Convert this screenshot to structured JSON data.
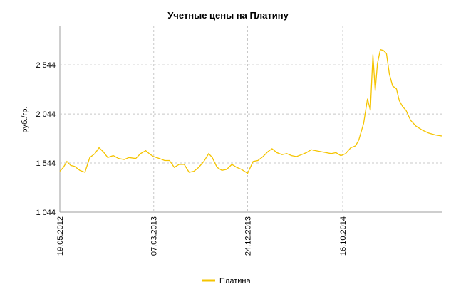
{
  "chart_data": {
    "type": "line",
    "title": "Учетные цены на Платину",
    "ylabel": "руб./гр.",
    "xlabel": "",
    "ylim": [
      1044,
      2944
    ],
    "y_ticks": [
      {
        "value": 1044,
        "label": "1 044"
      },
      {
        "value": 1544,
        "label": "1 544"
      },
      {
        "value": 2044,
        "label": "2 044"
      },
      {
        "value": 2544,
        "label": "2 544"
      }
    ],
    "x_ticks": [
      {
        "date": "2012-05-19",
        "label": "19.05.2012"
      },
      {
        "date": "2013-03-07",
        "label": "07.03.2013"
      },
      {
        "date": "2013-12-24",
        "label": "24.12.2013"
      },
      {
        "date": "2014-10-16",
        "label": "16.10.2014"
      }
    ],
    "xlim": [
      "2012-05-19",
      "2015-08-20"
    ],
    "grid": true,
    "legend": "bottom",
    "series": [
      {
        "name": "Платина",
        "color": "#f5c400",
        "points": [
          [
            "2012-05-19",
            1460
          ],
          [
            "2012-05-30",
            1500
          ],
          [
            "2012-06-10",
            1560
          ],
          [
            "2012-06-22",
            1520
          ],
          [
            "2012-07-04",
            1510
          ],
          [
            "2012-07-20",
            1470
          ],
          [
            "2012-08-05",
            1450
          ],
          [
            "2012-08-20",
            1600
          ],
          [
            "2012-09-05",
            1640
          ],
          [
            "2012-09-18",
            1700
          ],
          [
            "2012-10-01",
            1660
          ],
          [
            "2012-10-15",
            1600
          ],
          [
            "2012-11-01",
            1620
          ],
          [
            "2012-11-18",
            1590
          ],
          [
            "2012-12-05",
            1580
          ],
          [
            "2012-12-20",
            1600
          ],
          [
            "2013-01-10",
            1590
          ],
          [
            "2013-01-25",
            1640
          ],
          [
            "2013-02-10",
            1670
          ],
          [
            "2013-02-25",
            1630
          ],
          [
            "2013-03-07",
            1610
          ],
          [
            "2013-03-25",
            1590
          ],
          [
            "2013-04-10",
            1570
          ],
          [
            "2013-04-25",
            1570
          ],
          [
            "2013-05-10",
            1500
          ],
          [
            "2013-05-25",
            1530
          ],
          [
            "2013-06-10",
            1530
          ],
          [
            "2013-06-25",
            1450
          ],
          [
            "2013-07-10",
            1460
          ],
          [
            "2013-07-25",
            1500
          ],
          [
            "2013-08-10",
            1560
          ],
          [
            "2013-08-25",
            1640
          ],
          [
            "2013-09-05",
            1600
          ],
          [
            "2013-09-20",
            1500
          ],
          [
            "2013-10-05",
            1470
          ],
          [
            "2013-10-20",
            1480
          ],
          [
            "2013-11-05",
            1530
          ],
          [
            "2013-11-20",
            1500
          ],
          [
            "2013-12-05",
            1480
          ],
          [
            "2013-12-24",
            1440
          ],
          [
            "2014-01-10",
            1560
          ],
          [
            "2014-01-25",
            1570
          ],
          [
            "2014-02-10",
            1610
          ],
          [
            "2014-02-25",
            1660
          ],
          [
            "2014-03-10",
            1690
          ],
          [
            "2014-03-25",
            1650
          ],
          [
            "2014-04-10",
            1630
          ],
          [
            "2014-04-25",
            1640
          ],
          [
            "2014-05-10",
            1620
          ],
          [
            "2014-05-25",
            1610
          ],
          [
            "2014-06-10",
            1630
          ],
          [
            "2014-06-25",
            1650
          ],
          [
            "2014-07-10",
            1680
          ],
          [
            "2014-07-25",
            1670
          ],
          [
            "2014-08-10",
            1660
          ],
          [
            "2014-08-25",
            1650
          ],
          [
            "2014-09-10",
            1640
          ],
          [
            "2014-09-25",
            1650
          ],
          [
            "2014-10-10",
            1620
          ],
          [
            "2014-10-25",
            1640
          ],
          [
            "2014-11-10",
            1700
          ],
          [
            "2014-11-25",
            1720
          ],
          [
            "2014-12-05",
            1780
          ],
          [
            "2014-12-20",
            1950
          ],
          [
            "2015-01-01",
            2200
          ],
          [
            "2015-01-10",
            2080
          ],
          [
            "2015-01-18",
            2650
          ],
          [
            "2015-01-25",
            2280
          ],
          [
            "2015-02-01",
            2560
          ],
          [
            "2015-02-10",
            2700
          ],
          [
            "2015-02-20",
            2690
          ],
          [
            "2015-03-01",
            2660
          ],
          [
            "2015-03-10",
            2450
          ],
          [
            "2015-03-20",
            2330
          ],
          [
            "2015-04-01",
            2300
          ],
          [
            "2015-04-10",
            2180
          ],
          [
            "2015-04-20",
            2120
          ],
          [
            "2015-05-01",
            2080
          ],
          [
            "2015-05-15",
            1980
          ],
          [
            "2015-06-01",
            1920
          ],
          [
            "2015-06-20",
            1880
          ],
          [
            "2015-07-10",
            1850
          ],
          [
            "2015-08-01",
            1830
          ],
          [
            "2015-08-20",
            1820
          ]
        ]
      }
    ]
  }
}
